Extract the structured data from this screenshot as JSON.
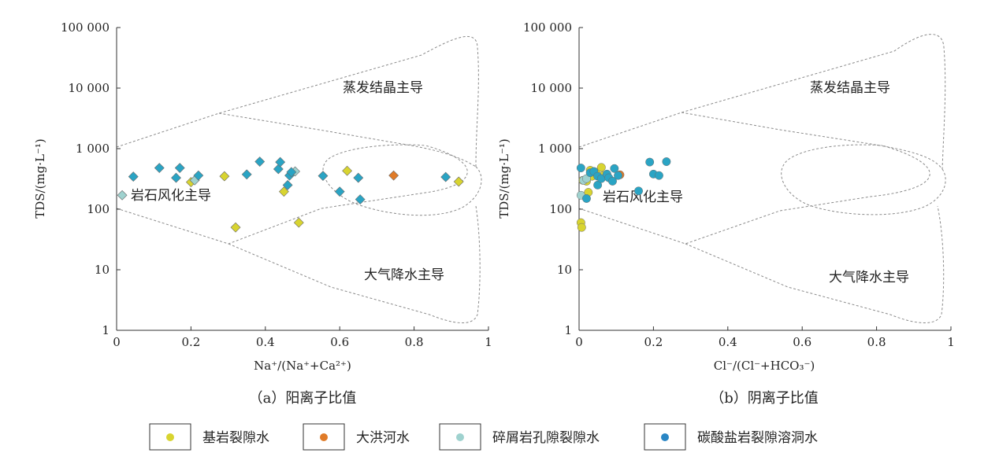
{
  "colors": {
    "bedrock_fissure": "#d8d430",
    "dahong_river": "#e07b28",
    "clastic_pore_fissure": "#9fd2cf",
    "carbonate_karst": "#2aa4c4",
    "marker_stroke": "#6a6a6a",
    "zone_line": "#8a8a8a"
  },
  "legend": [
    {
      "key": "bedrock_fissure",
      "label": "基岩裂隙水",
      "color": "#d8d430"
    },
    {
      "key": "dahong_river",
      "label": "大洪河水",
      "color": "#e07b28"
    },
    {
      "key": "clastic_pore_fissure",
      "label": "碎屑岩孔隙裂隙水",
      "color": "#9fd2cf"
    },
    {
      "key": "carbonate_karst",
      "label": "碳酸盐岩裂隙溶洞水",
      "color": "#2aa4c4"
    }
  ],
  "chart_data": [
    {
      "type": "scatter",
      "marker": "diamond",
      "caption": "（a）阳离子比值",
      "xlabel": "Na⁺/(Na⁺+Ca²⁺)",
      "ylabel": "TDS/(mg·L⁻¹)",
      "xlim": [
        0,
        1
      ],
      "ylim": [
        1,
        100000
      ],
      "yscale": "log",
      "xticks": [
        "0",
        "0.2",
        "0.4",
        "0.6",
        "0.8",
        "1"
      ],
      "yticks": [
        "1",
        "10",
        "100",
        "1 000",
        "10 000",
        "100 000"
      ],
      "grid": false,
      "regions": [
        "蒸发结晶主导",
        "岩石风化主导",
        "大气降水主导"
      ],
      "series": [
        {
          "name": "基岩裂隙水",
          "points": [
            [
              0.2,
              280
            ],
            [
              0.29,
              350
            ],
            [
              0.32,
              50
            ],
            [
              0.45,
              195
            ],
            [
              0.49,
              60
            ],
            [
              0.62,
              430
            ],
            [
              0.92,
              285
            ]
          ]
        },
        {
          "name": "大洪河水",
          "points": [
            [
              0.745,
              360
            ]
          ]
        },
        {
          "name": "碎屑岩孔隙裂隙水",
          "points": [
            [
              0.015,
              170
            ],
            [
              0.21,
              300
            ],
            [
              0.48,
              420
            ]
          ]
        },
        {
          "name": "碳酸盐岩裂隙溶洞水",
          "points": [
            [
              0.045,
              345
            ],
            [
              0.115,
              480
            ],
            [
              0.16,
              330
            ],
            [
              0.17,
              480
            ],
            [
              0.22,
              360
            ],
            [
              0.35,
              375
            ],
            [
              0.385,
              610
            ],
            [
              0.435,
              460
            ],
            [
              0.44,
              600
            ],
            [
              0.46,
              250
            ],
            [
              0.465,
              360
            ],
            [
              0.47,
              410
            ],
            [
              0.555,
              355
            ],
            [
              0.6,
              195
            ],
            [
              0.65,
              330
            ],
            [
              0.655,
              145
            ],
            [
              0.885,
              340
            ]
          ]
        }
      ]
    },
    {
      "type": "scatter",
      "marker": "circle",
      "caption": "（b）阴离子比值",
      "xlabel": "Cl⁻/(Cl⁻+HCO₃⁻)",
      "ylabel": "TDS/(mg·L⁻¹)",
      "xlim": [
        0,
        1
      ],
      "ylim": [
        1,
        100000
      ],
      "yscale": "log",
      "xticks": [
        "0",
        "0.2",
        "0.4",
        "0.6",
        "0.8",
        "1"
      ],
      "yticks": [
        "1",
        "10",
        "100",
        "1 000",
        "10 000",
        "100 000"
      ],
      "grid": false,
      "regions": [
        "蒸发结晶主导",
        "岩石风化主导",
        "大气降水主导"
      ],
      "series": [
        {
          "name": "基岩裂隙水",
          "points": [
            [
              0.005,
              60
            ],
            [
              0.007,
              50
            ],
            [
              0.01,
              300
            ],
            [
              0.02,
              290
            ],
            [
              0.025,
              190
            ],
            [
              0.03,
              440
            ],
            [
              0.035,
              350
            ],
            [
              0.045,
              410
            ],
            [
              0.06,
              490
            ],
            [
              0.065,
              360
            ]
          ]
        },
        {
          "name": "大洪河水",
          "points": [
            [
              0.11,
              370
            ]
          ]
        },
        {
          "name": "碎屑岩孔隙裂隙水",
          "points": [
            [
              0.005,
              170
            ],
            [
              0.012,
              300
            ],
            [
              0.02,
              320
            ]
          ]
        },
        {
          "name": "碳酸盐岩裂隙溶洞水",
          "points": [
            [
              0.005,
              480
            ],
            [
              0.02,
              150
            ],
            [
              0.03,
              400
            ],
            [
              0.04,
              420
            ],
            [
              0.05,
              350
            ],
            [
              0.05,
              250
            ],
            [
              0.06,
              320
            ],
            [
              0.075,
              380
            ],
            [
              0.08,
              330
            ],
            [
              0.09,
              290
            ],
            [
              0.095,
              470
            ],
            [
              0.105,
              360
            ],
            [
              0.16,
              200
            ],
            [
              0.19,
              600
            ],
            [
              0.2,
              380
            ],
            [
              0.215,
              360
            ],
            [
              0.235,
              610
            ]
          ]
        }
      ]
    }
  ]
}
